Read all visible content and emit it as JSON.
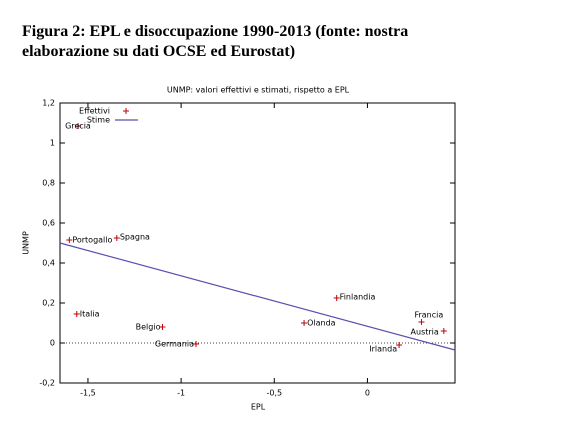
{
  "heading": [
    "Figura 2: EPL e disoccupazione 1990-2013 (fonte: nostra",
    "elaborazione su dati OCSE ed Eurostat)"
  ],
  "chart_data": {
    "type": "scatter",
    "title": "UNMP: valori effettivi e stimati, rispetto a EPL",
    "xlabel": "EPL",
    "ylabel": "UNMP",
    "xlim": [
      -1.65,
      0.47
    ],
    "ylim": [
      -0.2,
      1.2
    ],
    "xticks": [
      {
        "value": -1.5,
        "label": "-1,5"
      },
      -1,
      {
        "value": -0.5,
        "label": "-0,5"
      },
      0
    ],
    "yticks": [
      {
        "value": -0.2,
        "label": "-0,2"
      },
      0,
      {
        "value": 0.2,
        "label": "0,2"
      },
      {
        "value": 0.4,
        "label": "0,4"
      },
      {
        "value": 0.6,
        "label": "0,6"
      },
      {
        "value": 0.8,
        "label": "0,8"
      },
      1,
      {
        "value": 1.2,
        "label": "1,2"
      }
    ],
    "series": [
      {
        "name": "Effettivi",
        "color": "#c00000",
        "labels": [
          "Grecia",
          "Portogallo",
          "Spagna",
          "Italia",
          "Belgio",
          "Germania",
          "Finlandia",
          "Olanda",
          "Francia",
          "Austria",
          "Irlanda"
        ],
        "x": [
          -1.553,
          -1.6,
          -1.345,
          -1.56,
          -1.1,
          -0.92,
          -0.165,
          -0.34,
          0.29,
          0.41,
          0.17
        ],
        "values": [
          1.085,
          0.515,
          0.525,
          0.145,
          0.08,
          -0.005,
          0.225,
          0.1,
          0.105,
          0.06,
          -0.01
        ]
      },
      {
        "name": "Stime",
        "color": "#5a4fb0",
        "x": [
          -1.65,
          0.47
        ],
        "values": [
          0.5,
          -0.035
        ]
      }
    ]
  }
}
